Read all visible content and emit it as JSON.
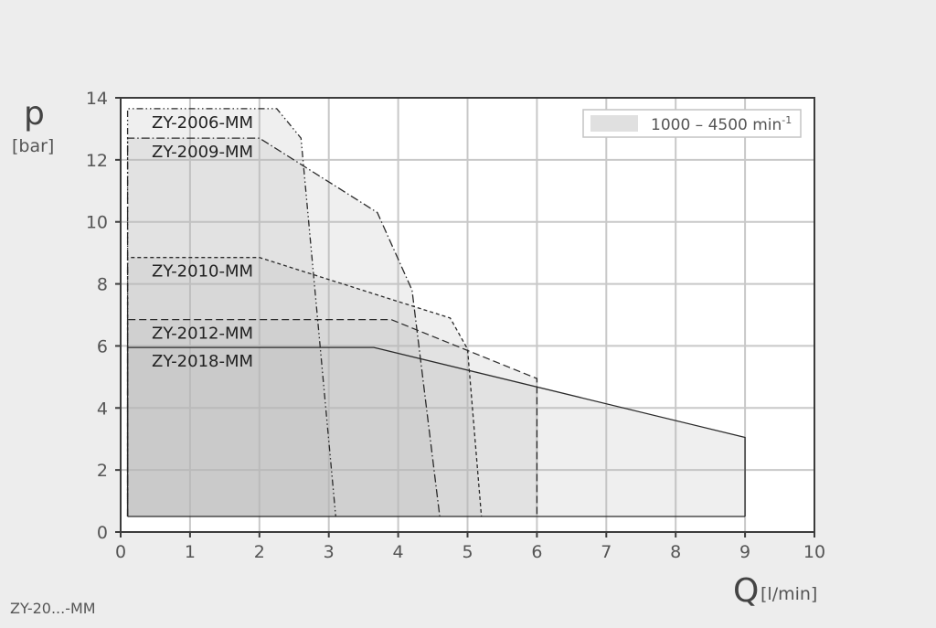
{
  "chart_data": {
    "type": "line",
    "y_symbol": "p",
    "y_unit": "[bar]",
    "x_symbol": "Q",
    "x_unit": "[l/min]",
    "xlim": [
      0,
      10
    ],
    "ylim": [
      0,
      14
    ],
    "x_ticks": [
      0,
      1,
      2,
      3,
      4,
      5,
      6,
      7,
      8,
      9,
      10
    ],
    "y_ticks": [
      0,
      2,
      4,
      6,
      8,
      10,
      12,
      14
    ],
    "grid": true,
    "legend": {
      "position": "top-right",
      "label": "1000 – 4500 min",
      "superscript": "-1",
      "color": "#e0e0e0"
    },
    "series": [
      {
        "name": "ZY-2006-MM",
        "style": "dashdotdot",
        "points": [
          [
            0.1,
            0.5
          ],
          [
            0.1,
            13.65
          ],
          [
            2.25,
            13.65
          ],
          [
            2.6,
            12.7
          ],
          [
            3.1,
            0.5
          ]
        ]
      },
      {
        "name": "ZY-2009-MM",
        "style": "dashdot",
        "points": [
          [
            0.1,
            0.5
          ],
          [
            0.1,
            12.7
          ],
          [
            2.0,
            12.7
          ],
          [
            3.7,
            10.3
          ],
          [
            4.2,
            7.8
          ],
          [
            4.6,
            0.5
          ]
        ]
      },
      {
        "name": "ZY-2010-MM",
        "style": "shortdash",
        "points": [
          [
            0.1,
            0.5
          ],
          [
            0.1,
            8.85
          ],
          [
            2.0,
            8.85
          ],
          [
            4.75,
            6.9
          ],
          [
            5.0,
            5.9
          ],
          [
            5.2,
            0.5
          ]
        ]
      },
      {
        "name": "ZY-2012-MM",
        "style": "dash",
        "points": [
          [
            0.1,
            0.5
          ],
          [
            0.1,
            6.85
          ],
          [
            3.9,
            6.85
          ],
          [
            6.0,
            4.95
          ],
          [
            6.0,
            0.5
          ]
        ]
      },
      {
        "name": "ZY-2018-MM",
        "style": "solid",
        "points": [
          [
            0.1,
            0.5
          ],
          [
            0.1,
            5.95
          ],
          [
            3.65,
            5.95
          ],
          [
            9.0,
            3.05
          ],
          [
            9.0,
            0.5
          ]
        ]
      }
    ]
  },
  "footer": {
    "label": "ZY-20...-MM"
  }
}
